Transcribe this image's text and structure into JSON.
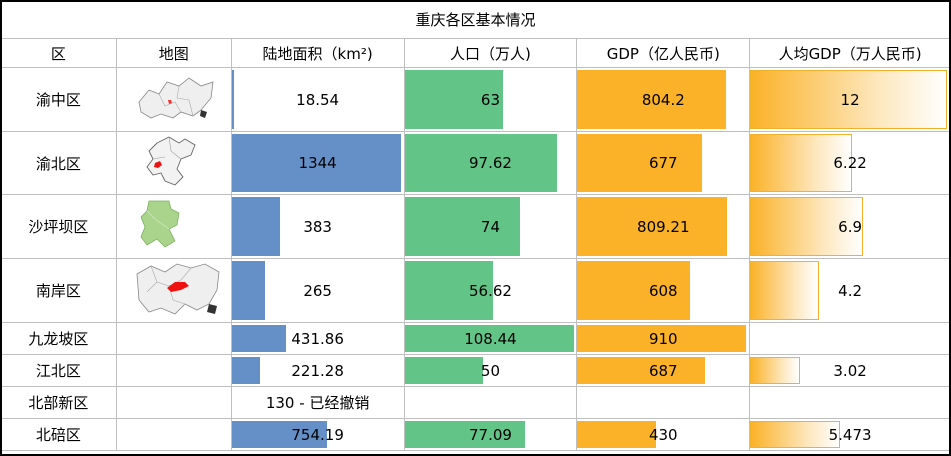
{
  "title": "重庆各区基本情况",
  "headers": [
    "区",
    "地图",
    "陆地面积（km²)",
    "人口（万人)",
    "GDP（亿人民币)",
    "人均GDP（万人民币)"
  ],
  "rows": [
    {
      "district": "渝中区",
      "map": "district-map",
      "area": "18.54",
      "area_fill": 0.012,
      "pop": "63",
      "pop_fill": 0.58,
      "gdp": "804.2",
      "gdp_fill": 0.88,
      "pcgdp": "12",
      "pcgdp_fill": 1.0
    },
    {
      "district": "渝北区",
      "map": "district-map",
      "area": "1344",
      "area_fill": 1.0,
      "pop": "97.62",
      "pop_fill": 0.9,
      "gdp": "677",
      "gdp_fill": 0.74,
      "pcgdp": "6.22",
      "pcgdp_fill": 0.52
    },
    {
      "district": "沙坪坝区",
      "map": "district-map",
      "area": "383",
      "area_fill": 0.285,
      "pop": "74",
      "pop_fill": 0.68,
      "gdp": "809.21",
      "gdp_fill": 0.89,
      "pcgdp": "6.9",
      "pcgdp_fill": 0.575
    },
    {
      "district": "南岸区",
      "map": "district-map",
      "area": "265",
      "area_fill": 0.197,
      "pop": "56.62",
      "pop_fill": 0.52,
      "gdp": "608",
      "gdp_fill": 0.67,
      "pcgdp": "4.2",
      "pcgdp_fill": 0.35
    },
    {
      "district": "九龙坡区",
      "map": "",
      "area": "431.86",
      "area_fill": 0.321,
      "pop": "108.44",
      "pop_fill": 1.0,
      "gdp": "910",
      "gdp_fill": 1.0,
      "pcgdp": "",
      "pcgdp_fill": 0
    },
    {
      "district": "江北区",
      "map": "",
      "area": "221.28",
      "area_fill": 0.165,
      "pop": "50",
      "pop_fill": 0.46,
      "gdp": "687",
      "gdp_fill": 0.755,
      "pcgdp": "3.02",
      "pcgdp_fill": 0.252
    },
    {
      "district": "北部新区",
      "map": "",
      "area": "130 - 已经撤销",
      "area_fill": 0,
      "pop": "",
      "pop_fill": 0,
      "gdp": "",
      "gdp_fill": 0,
      "pcgdp": "",
      "pcgdp_fill": 0
    },
    {
      "district": "北碚区",
      "map": "",
      "area": "754.19",
      "area_fill": 0.561,
      "pop": "77.09",
      "pop_fill": 0.71,
      "gdp": "430",
      "gdp_fill": 0.47,
      "pcgdp": "5.473",
      "pcgdp_fill": 0.456
    }
  ]
}
